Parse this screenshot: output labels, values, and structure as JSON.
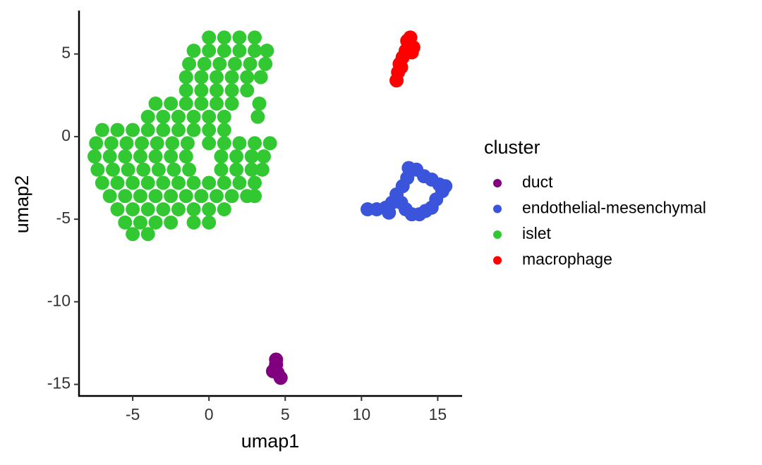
{
  "chart_data": {
    "type": "scatter",
    "x_label": "umap1",
    "y_label": "umap2",
    "legend_title": "cluster",
    "xlim": [
      -8.52,
      16.6
    ],
    "ylim": [
      -15.7,
      7.63
    ],
    "xticks": [
      -5,
      0,
      5,
      10,
      15
    ],
    "yticks": [
      -15,
      -10,
      -5,
      0,
      5
    ],
    "series": [
      {
        "name": "duct",
        "color": "#800080",
        "x": [
          4.4,
          4.3,
          4.5,
          4.7,
          4.4,
          4.2
        ],
        "y": [
          -13.5,
          -14.1,
          -14.3,
          -14.6,
          -13.8,
          -14.2
        ]
      },
      {
        "name": "endothelial-mesenchymal",
        "color": "#3a55dc",
        "x": [
          10.4,
          11,
          11.6,
          12,
          12.3,
          12.7,
          13,
          13.1,
          13.6,
          14.1,
          14.6,
          15.1,
          15.3,
          14.9,
          14.6,
          14.2,
          13.8,
          13.3,
          12.9,
          12.6,
          11.8,
          15.5
        ],
        "y": [
          -4.4,
          -4.4,
          -4.3,
          -4,
          -3.5,
          -3,
          -2.5,
          -1.9,
          -2.0,
          -2.4,
          -2.6,
          -2.9,
          -3.3,
          -3.8,
          -4.3,
          -4.5,
          -4.7,
          -4.7,
          -4.4,
          -4.0,
          -4.6,
          -3.0
        ]
      },
      {
        "name": "islet",
        "color": "#32c832",
        "x": [
          0,
          1,
          2,
          3,
          -1,
          0,
          1,
          2,
          3,
          3.8,
          -1.3,
          -0.3,
          0.7,
          1.7,
          2.7,
          3.7,
          -1.5,
          -0.5,
          0.5,
          1.5,
          2.5,
          3.4,
          -1.5,
          -0.5,
          0.5,
          1.5,
          2.5,
          -3.5,
          -2.5,
          -1.5,
          -0.5,
          0.5,
          1.5,
          3.3,
          -4,
          -3,
          -2,
          -1,
          0,
          1,
          3.2,
          -7,
          -6,
          -5,
          -4,
          -3,
          -2,
          -1,
          0,
          1,
          -7.4,
          -6.4,
          -5.4,
          -4.4,
          -3.4,
          -2.4,
          -1.4,
          0,
          1,
          2,
          3,
          4,
          -7.5,
          -6.5,
          -5.5,
          -4.5,
          -3.5,
          -2.5,
          -1.5,
          0.8,
          1.8,
          2.8,
          3.6,
          -7.3,
          -6.3,
          -5.3,
          -4.3,
          -3.3,
          -2.3,
          -1.3,
          0.8,
          1.8,
          2.8,
          3.5,
          -7,
          -6,
          -5,
          -4,
          -3,
          -2,
          -1,
          0,
          1,
          2,
          3,
          -6.5,
          -5.5,
          -4.5,
          -3.5,
          -2.5,
          -1.5,
          -0.5,
          0.5,
          1.5,
          2.5,
          3,
          -6,
          -5,
          -4,
          -3,
          -2,
          -1,
          0,
          1,
          -5.5,
          -4.5,
          -3.5,
          -2.5,
          -1,
          0,
          -5,
          -4
        ],
        "y": [
          6.0,
          6.0,
          6.0,
          6.0,
          5.2,
          5.2,
          5.2,
          5.2,
          5.2,
          5.2,
          4.4,
          4.4,
          4.4,
          4.4,
          4.4,
          4.4,
          3.6,
          3.6,
          3.6,
          3.6,
          3.6,
          3.6,
          2.8,
          2.8,
          2.8,
          2.8,
          2.8,
          2.0,
          2.0,
          2.0,
          2.0,
          2.0,
          2.0,
          2.0,
          1.2,
          1.2,
          1.2,
          1.2,
          1.2,
          1.2,
          1.2,
          0.4,
          0.4,
          0.4,
          0.4,
          0.4,
          0.4,
          0.4,
          0.4,
          0.4,
          -0.4,
          -0.4,
          -0.4,
          -0.4,
          -0.4,
          -0.4,
          -0.4,
          -0.4,
          -0.4,
          -0.4,
          -0.4,
          -0.4,
          -1.2,
          -1.2,
          -1.2,
          -1.2,
          -1.2,
          -1.2,
          -1.2,
          -1.2,
          -1.2,
          -1.2,
          -1.2,
          -2.0,
          -2.0,
          -2.0,
          -2.0,
          -2.0,
          -2.0,
          -2.0,
          -2.0,
          -2.0,
          -2.0,
          -2.0,
          -2.8,
          -2.8,
          -2.8,
          -2.8,
          -2.8,
          -2.8,
          -2.8,
          -2.8,
          -2.8,
          -2.8,
          -2.8,
          -3.6,
          -3.6,
          -3.6,
          -3.6,
          -3.6,
          -3.6,
          -3.6,
          -3.6,
          -3.6,
          -3.6,
          -3.6,
          -4.4,
          -4.4,
          -4.4,
          -4.4,
          -4.4,
          -4.4,
          -4.4,
          -4.4,
          -5.2,
          -5.2,
          -5.2,
          -5.2,
          -5.2,
          -5.2,
          -5.9,
          -5.9
        ]
      },
      {
        "name": "macrophage",
        "color": "#ff0000",
        "x": [
          12.3,
          12.4,
          12.5,
          12.7,
          12.9,
          13.1,
          13.2,
          13.4,
          13.0,
          12.6,
          13.3
        ],
        "y": [
          3.4,
          3.9,
          4.4,
          4.8,
          5.2,
          5.6,
          6.0,
          5.4,
          5.8,
          4.2,
          5.1
        ]
      }
    ]
  }
}
